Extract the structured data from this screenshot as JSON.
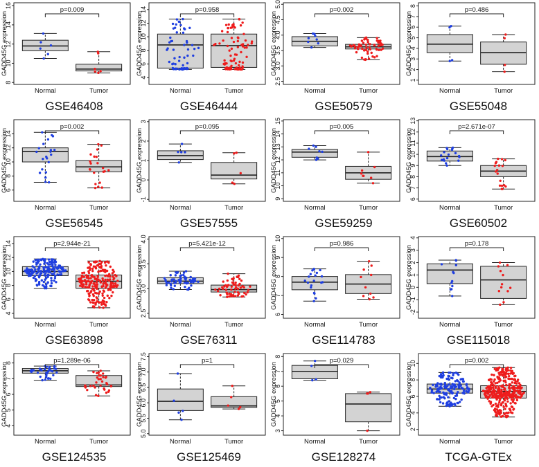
{
  "colors": {
    "normal": "#1f3fe0",
    "tumor": "#ee1c1c",
    "box_fill": "#d3d3d3",
    "line": "#222222"
  },
  "chart_data": [
    {
      "type": "box",
      "title": "GSE46408",
      "ylabel": "GADD45G expression",
      "categories": [
        "Normal",
        "Tumor"
      ],
      "pvalue": "p=0.009",
      "ylim": [
        7.8,
        16.3
      ],
      "yticks": [
        8,
        10,
        12,
        14,
        16
      ],
      "boxes": [
        {
          "whisker_low": 10.5,
          "q1": 11.3,
          "median": 11.8,
          "q3": 12.4,
          "whisker_high": 13.1,
          "n": 6
        },
        {
          "whisker_low": 9.0,
          "q1": 9.2,
          "median": 9.4,
          "q3": 9.9,
          "whisker_high": 11.2,
          "n": 6
        }
      ]
    },
    {
      "type": "box",
      "title": "GSE46444",
      "ylabel": "GADD45G expression",
      "categories": [
        "Normal",
        "Tumor"
      ],
      "pvalue": "p=0.958",
      "ylim": [
        3.0,
        15.0
      ],
      "yticks": [
        4,
        6,
        8,
        10,
        12,
        14
      ],
      "boxes": [
        {
          "whisker_low": 5.2,
          "q1": 5.4,
          "median": 8.8,
          "q3": 10.4,
          "whisker_high": 12.6,
          "n": 60
        },
        {
          "whisker_low": 5.2,
          "q1": 5.5,
          "median": 8.7,
          "q3": 10.4,
          "whisker_high": 12.6,
          "n": 90
        }
      ]
    },
    {
      "type": "box",
      "title": "GSE50579",
      "ylabel": "GADD45G expression",
      "categories": [
        "Normal",
        "Tumor"
      ],
      "pvalue": "p=0.002",
      "ylim": [
        2.4,
        5.05
      ],
      "yticks": [
        2.5,
        3.0,
        3.5,
        4.0,
        4.5,
        5.0
      ],
      "boxes": [
        {
          "whisker_low": 3.6,
          "q1": 3.65,
          "median": 3.8,
          "q3": 3.95,
          "whisker_high": 4.05,
          "n": 8
        },
        {
          "whisker_low": 3.2,
          "q1": 3.55,
          "median": 3.62,
          "q3": 3.7,
          "whisker_high": 3.92,
          "n": 60
        }
      ]
    },
    {
      "type": "box",
      "title": "GSE55048",
      "ylabel": "GADD45G expression",
      "categories": [
        "Normal",
        "Tumor"
      ],
      "pvalue": "p=0.486",
      "ylim": [
        0.6,
        8.3
      ],
      "yticks": [
        1,
        2,
        3,
        4,
        5,
        6,
        7,
        8
      ],
      "boxes": [
        {
          "whisker_low": 2.8,
          "q1": 3.6,
          "median": 4.4,
          "q3": 5.3,
          "whisker_high": 6.1,
          "n": 4
        },
        {
          "whisker_low": 1.8,
          "q1": 2.5,
          "median": 3.6,
          "q3": 4.6,
          "whisker_high": 5.3,
          "n": 4
        }
      ]
    },
    {
      "type": "box",
      "title": "GSE56545",
      "ylabel": "GADD45G expression",
      "categories": [
        "Normal",
        "Tumor"
      ],
      "pvalue": "p=0.002",
      "ylim": [
        4.4,
        16.0
      ],
      "yticks": [
        6,
        8,
        10,
        12,
        14
      ],
      "boxes": [
        {
          "whisker_low": 7.1,
          "q1": 10.0,
          "median": 11.5,
          "q3": 12.0,
          "whisker_high": 14.2,
          "n": 21
        },
        {
          "whisker_low": 6.3,
          "q1": 8.6,
          "median": 9.3,
          "q3": 10.2,
          "whisker_high": 12.5,
          "n": 21
        }
      ]
    },
    {
      "type": "box",
      "title": "GSE57555",
      "ylabel": "GADD45G expression",
      "categories": [
        "Normal",
        "Tumor"
      ],
      "pvalue": "p=0.095",
      "ylim": [
        -1.1,
        3.1
      ],
      "yticks": [
        -1,
        0,
        1,
        2,
        3
      ],
      "boxes": [
        {
          "whisker_low": 0.9,
          "q1": 1.05,
          "median": 1.25,
          "q3": 1.5,
          "whisker_high": 1.85,
          "n": 5
        },
        {
          "whisker_low": -0.2,
          "q1": 0.05,
          "median": 0.25,
          "q3": 0.9,
          "whisker_high": 1.4,
          "n": 5
        }
      ]
    },
    {
      "type": "box",
      "title": "GSE59259",
      "ylabel": "GADD45G expression",
      "categories": [
        "Normal",
        "Tumor"
      ],
      "pvalue": "p=0.005",
      "ylim": [
        8.8,
        15.1
      ],
      "yticks": [
        9,
        10,
        11,
        12,
        13,
        14,
        15
      ],
      "boxes": [
        {
          "whisker_low": 12.0,
          "q1": 12.2,
          "median": 12.6,
          "q3": 12.8,
          "whisker_high": 13.1,
          "n": 8
        },
        {
          "whisker_low": 10.2,
          "q1": 10.5,
          "median": 11.0,
          "q3": 11.5,
          "whisker_high": 12.6,
          "n": 8
        }
      ]
    },
    {
      "type": "box",
      "title": "GSE60502",
      "ylabel": "GADD45G expression",
      "categories": [
        "Normal",
        "Tumor"
      ],
      "pvalue": "p=2.671e-07",
      "ylim": [
        5.8,
        13.1
      ],
      "yticks": [
        6,
        7,
        8,
        9,
        10,
        11,
        12,
        13
      ],
      "boxes": [
        {
          "whisker_low": 9.0,
          "q1": 9.4,
          "median": 9.8,
          "q3": 10.3,
          "whisker_high": 10.6,
          "n": 18
        },
        {
          "whisker_low": 6.9,
          "q1": 8.0,
          "median": 8.5,
          "q3": 9.0,
          "whisker_high": 9.6,
          "n": 18
        }
      ]
    },
    {
      "type": "box",
      "title": "GSE63898",
      "ylabel": "GADD45G expression",
      "categories": [
        "Normal",
        "Tumor"
      ],
      "pvalue": "p=2.944e-21",
      "ylim": [
        3.3,
        15.0
      ],
      "yticks": [
        4,
        6,
        8,
        10,
        12,
        14
      ],
      "boxes": [
        {
          "whisker_low": 7.6,
          "q1": 9.4,
          "median": 10.0,
          "q3": 10.7,
          "whisker_high": 11.8,
          "n": 168
        },
        {
          "whisker_low": 4.8,
          "q1": 7.6,
          "median": 8.6,
          "q3": 9.5,
          "whisker_high": 11.5,
          "n": 228
        }
      ]
    },
    {
      "type": "box",
      "title": "GSE76311",
      "ylabel": "GADD45G expression",
      "categories": [
        "Normal",
        "Tumor"
      ],
      "pvalue": "p=5.421e-12",
      "ylim": [
        2.4,
        4.05
      ],
      "yticks": [
        2.5,
        3.0,
        3.5,
        4.0
      ],
      "boxes": [
        {
          "whisker_low": 2.98,
          "q1": 3.1,
          "median": 3.15,
          "q3": 3.22,
          "whisker_high": 3.35,
          "n": 62
        },
        {
          "whisker_low": 2.83,
          "q1": 2.93,
          "median": 2.98,
          "q3": 3.07,
          "whisker_high": 3.3,
          "n": 62
        }
      ]
    },
    {
      "type": "box",
      "title": "GSE114783",
      "ylabel": "GADD45G expression",
      "categories": [
        "Normal",
        "Tumor"
      ],
      "pvalue": "p=0.986",
      "ylim": [
        5.8,
        10.1
      ],
      "yticks": [
        6,
        7,
        8,
        9,
        10
      ],
      "boxes": [
        {
          "whisker_low": 6.7,
          "q1": 7.3,
          "median": 7.7,
          "q3": 8.0,
          "whisker_high": 8.4,
          "n": 20
        },
        {
          "whisker_low": 6.8,
          "q1": 7.1,
          "median": 7.6,
          "q3": 8.1,
          "whisker_high": 8.8,
          "n": 10
        }
      ]
    },
    {
      "type": "box",
      "title": "GSE115018",
      "ylabel": "GADD45G expression",
      "categories": [
        "Normal",
        "Tumor"
      ],
      "pvalue": "p=0.178",
      "ylim": [
        -2.5,
        4.1
      ],
      "yticks": [
        -2,
        -1,
        0,
        1,
        2,
        3,
        4
      ],
      "boxes": [
        {
          "whisker_low": -0.7,
          "q1": 0.3,
          "median": 1.4,
          "q3": 1.9,
          "whisker_high": 2.2,
          "n": 12
        },
        {
          "whisker_low": -1.4,
          "q1": -0.9,
          "median": 0.6,
          "q3": 1.7,
          "whisker_high": 2.0,
          "n": 12
        }
      ]
    },
    {
      "type": "box",
      "title": "GSE124535",
      "ylabel": "GADD45G expression",
      "categories": [
        "Normal",
        "Tumor"
      ],
      "pvalue": "p=1.289e-06",
      "ylim": [
        3.4,
        8.6
      ],
      "yticks": [
        4,
        5,
        6,
        7,
        8
      ],
      "boxes": [
        {
          "whisker_low": 6.9,
          "q1": 7.35,
          "median": 7.5,
          "q3": 7.65,
          "whisker_high": 7.8,
          "n": 35
        },
        {
          "whisker_low": 5.9,
          "q1": 6.5,
          "median": 6.6,
          "q3": 7.2,
          "whisker_high": 7.5,
          "n": 35
        }
      ]
    },
    {
      "type": "box",
      "title": "GSE125469",
      "ylabel": "GADD45G expression",
      "categories": [
        "Normal",
        "Tumor"
      ],
      "pvalue": "p=1",
      "ylim": [
        4.95,
        7.6
      ],
      "yticks": [
        5.0,
        5.5,
        6.0,
        6.5,
        7.0,
        7.5
      ],
      "boxes": [
        {
          "whisker_low": 5.45,
          "q1": 5.75,
          "median": 6.05,
          "q3": 6.45,
          "whisker_high": 6.95,
          "n": 5
        },
        {
          "whisker_low": 5.8,
          "q1": 5.85,
          "median": 5.9,
          "q3": 6.2,
          "whisker_high": 6.55,
          "n": 5
        }
      ]
    },
    {
      "type": "box",
      "title": "GSE128274",
      "ylabel": "GADD45G expression",
      "categories": [
        "Normal",
        "Tumor"
      ],
      "pvalue": "p=0.029",
      "ylim": [
        2.7,
        8.2
      ],
      "yticks": [
        3,
        4,
        5,
        6,
        7,
        8
      ],
      "boxes": [
        {
          "whisker_low": 6.4,
          "q1": 6.5,
          "median": 7.0,
          "q3": 7.4,
          "whisker_high": 7.7,
          "n": 4
        },
        {
          "whisker_low": 3.0,
          "q1": 3.6,
          "median": 4.8,
          "q3": 5.5,
          "whisker_high": 5.6,
          "n": 4
        }
      ]
    },
    {
      "type": "box",
      "title": "TCGA-GTEx",
      "ylabel": "GADD45G expression",
      "categories": [
        "Normal",
        "Tumor"
      ],
      "pvalue": "p=0.002",
      "ylim": [
        1.3,
        11.2
      ],
      "yticks": [
        2,
        4,
        6,
        8,
        10
      ],
      "boxes": [
        {
          "whisker_low": 4.8,
          "q1": 6.4,
          "median": 6.9,
          "q3": 7.5,
          "whisker_high": 8.9,
          "n": 160
        },
        {
          "whisker_low": 3.5,
          "q1": 5.8,
          "median": 6.6,
          "q3": 7.3,
          "whisker_high": 9.5,
          "n": 369
        }
      ]
    }
  ]
}
